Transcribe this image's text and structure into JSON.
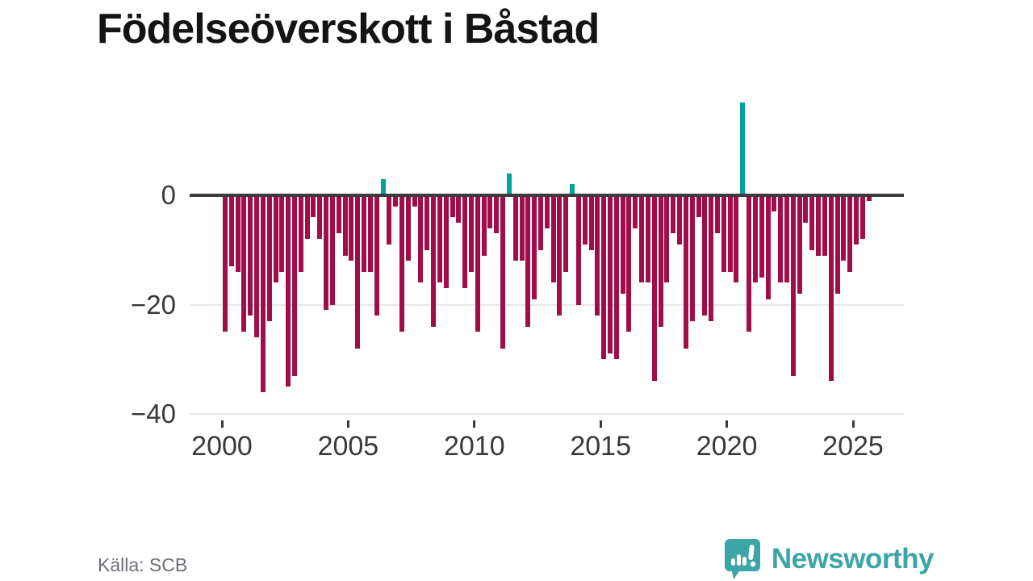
{
  "title": "Födelseöverskott i Båstad",
  "source": "Källa: SCB",
  "logo": {
    "text": "Newsworthy",
    "icon": "newsworthy-speech-bubble-chart-icon"
  },
  "colors": {
    "negative_bar": "#a00d49",
    "positive_bar": "#00a29c",
    "axis": "#3b3b3b",
    "grid": "#e7e7e7",
    "tick_text": "#38383d",
    "muted_text": "#6e6e78",
    "logo_teal": "#3da5a6",
    "background": "#ffffff"
  },
  "chart_data": {
    "type": "bar",
    "title": "Födelseöverskott i Båstad",
    "frequency": "quarterly",
    "start_period": "2000 Q1",
    "end_period": "2025 Q3",
    "values": [
      -25,
      -13,
      -14,
      -25,
      -22,
      -26,
      -36,
      -23,
      -16,
      -14,
      -35,
      -33,
      -14,
      -8,
      -4,
      -8,
      -21,
      -20,
      -7,
      -11,
      -12,
      -28,
      -14,
      -14,
      -22,
      3,
      -9,
      -2,
      -25,
      -12,
      -2,
      -16,
      -10,
      -24,
      -16,
      -17,
      -4,
      -5,
      -17,
      -14,
      -25,
      -11,
      -6,
      -7,
      -28,
      4,
      -12,
      -12,
      -24,
      -19,
      -10,
      -6,
      -16,
      -22,
      -14,
      2,
      -20,
      -9,
      -10,
      -22,
      -30,
      -29,
      -30,
      -18,
      -25,
      -6,
      -16,
      -16,
      -34,
      -24,
      -16,
      -7,
      -9,
      -28,
      -23,
      -4,
      -22,
      -23,
      -7,
      -14,
      -14,
      -16,
      17,
      -25,
      -16,
      -15,
      -19,
      -3,
      -16,
      -16,
      -33,
      -18,
      -5,
      -10,
      -11,
      -11,
      -34,
      -18,
      -12,
      -14,
      -9,
      -8,
      -1
    ],
    "positive_color_note": "teal bars are positive quarters: 2006Q2 +3, 2011Q2 +4, 2013Q4 +2, 2020Q3 +17",
    "yticks": [
      {
        "label": "0",
        "value": 0
      },
      {
        "label": "−20",
        "value": -20
      },
      {
        "label": "−40",
        "value": -40
      }
    ],
    "xticks": [
      {
        "label": "2000",
        "quarter_index": 0
      },
      {
        "label": "2005",
        "quarter_index": 20
      },
      {
        "label": "2010",
        "quarter_index": 40
      },
      {
        "label": "2015",
        "quarter_index": 60
      },
      {
        "label": "2020",
        "quarter_index": 80
      },
      {
        "label": "2025",
        "quarter_index": 100
      }
    ],
    "ylim": [
      -40,
      18
    ],
    "grid": "horizontal-light",
    "legend": "none"
  }
}
